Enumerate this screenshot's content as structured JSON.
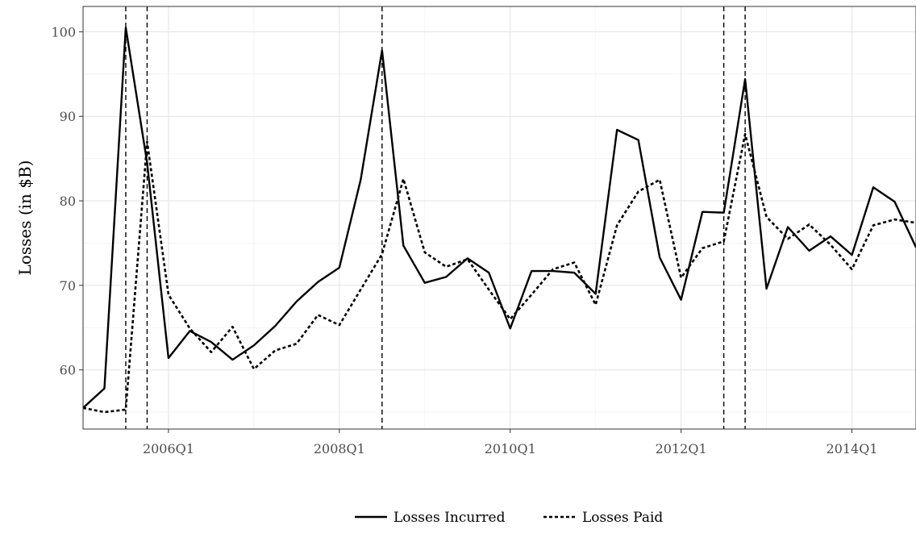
{
  "chart_data": {
    "type": "line",
    "title": "",
    "xlabel": "",
    "ylabel": "Losses (in $B)",
    "x_start": "2005Q1",
    "x_end": "2014Q4",
    "ylim": [
      53,
      103
    ],
    "x_ticks": [
      "2006Q1",
      "2008Q1",
      "2010Q1",
      "2012Q1",
      "2014Q1"
    ],
    "y_ticks": [
      60,
      70,
      80,
      90,
      100
    ],
    "grid": true,
    "legend_position": "bottom",
    "x": [
      "2005Q1",
      "2005Q2",
      "2005Q3",
      "2005Q4",
      "2006Q1",
      "2006Q2",
      "2006Q3",
      "2006Q4",
      "2007Q1",
      "2007Q2",
      "2007Q3",
      "2007Q4",
      "2008Q1",
      "2008Q2",
      "2008Q3",
      "2008Q4",
      "2009Q1",
      "2009Q2",
      "2009Q3",
      "2009Q4",
      "2010Q1",
      "2010Q2",
      "2010Q3",
      "2010Q4",
      "2011Q1",
      "2011Q2",
      "2011Q3",
      "2011Q4",
      "2012Q1",
      "2012Q2",
      "2012Q3",
      "2012Q4",
      "2013Q1",
      "2013Q2",
      "2013Q3",
      "2013Q4",
      "2014Q1",
      "2014Q2",
      "2014Q3",
      "2014Q4"
    ],
    "series": [
      {
        "name": "Losses Incurred",
        "line_style": "solid",
        "values": [
          55.5,
          57.8,
          100.5,
          84.5,
          61.4,
          64.6,
          63.3,
          61.2,
          62.9,
          65.2,
          68.1,
          70.4,
          72.1,
          82.5,
          97.8,
          74.7,
          70.3,
          71.0,
          73.2,
          71.5,
          64.9,
          71.7,
          71.7,
          71.5,
          69.0,
          88.4,
          87.2,
          73.3,
          68.3,
          78.7,
          78.6,
          94.4,
          69.6,
          76.9,
          74.1,
          75.8,
          73.6,
          81.6,
          79.9,
          74.5
        ]
      },
      {
        "name": "Losses Paid",
        "line_style": "dotted",
        "values": [
          55.5,
          55.0,
          55.3,
          87.0,
          68.9,
          64.9,
          62.1,
          65.1,
          60.1,
          62.3,
          63.1,
          66.5,
          65.3,
          69.5,
          73.7,
          82.6,
          73.9,
          72.2,
          73.1,
          69.5,
          66.0,
          68.9,
          71.9,
          72.7,
          67.7,
          77.1,
          81.1,
          82.5,
          70.9,
          74.4,
          75.2,
          87.9,
          78.1,
          75.5,
          77.2,
          74.8,
          71.9,
          77.1,
          77.8,
          77.4
        ]
      }
    ],
    "vertical_lines": [
      "2005Q3",
      "2005Q4",
      "2008Q3",
      "2012Q3",
      "2012Q4"
    ]
  }
}
